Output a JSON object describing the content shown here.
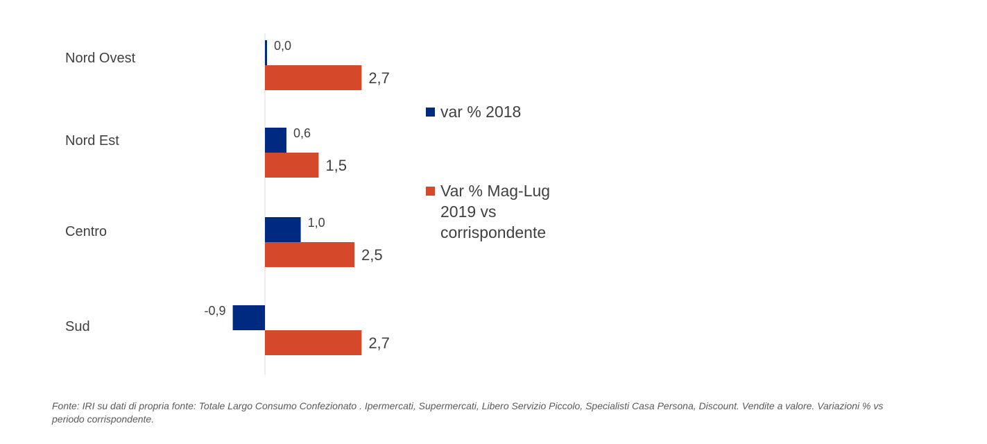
{
  "chart_data": {
    "type": "bar",
    "orientation": "horizontal",
    "categories": [
      "Nord Ovest",
      "Nord Est",
      "Centro",
      "Sud"
    ],
    "series": [
      {
        "name": "var % 2018",
        "values": [
          0.0,
          0.6,
          1.0,
          -0.9
        ],
        "labels": [
          "0,0",
          "0,6",
          "1,0",
          "-0,9"
        ],
        "color": "#002A7F"
      },
      {
        "name": "Var % Mag-Lug 2019 vs corrispondente",
        "values": [
          2.7,
          1.5,
          2.5,
          2.7
        ],
        "labels": [
          "2,7",
          "1,5",
          "2,5",
          "2,7"
        ],
        "color": "#D5492A"
      }
    ],
    "xlim": [
      -1.0,
      3.0
    ],
    "grid": false,
    "legend_position": "right",
    "title": "",
    "xlabel": "",
    "ylabel": ""
  },
  "legend": {
    "items": [
      {
        "label": "var % 2018",
        "color": "#002A7F"
      },
      {
        "label": "Var % Mag-Lug 2019 vs corrispondente",
        "color": "#D5492A"
      }
    ]
  },
  "footnote": "Fonte: IRI su dati di propria fonte:  Totale Largo Consumo Confezionato . Ipermercati, Supermercati, Libero Servizio Piccolo, Specialisti Casa Persona, Discount. Vendite a valore. Variazioni % vs periodo corrispondente."
}
